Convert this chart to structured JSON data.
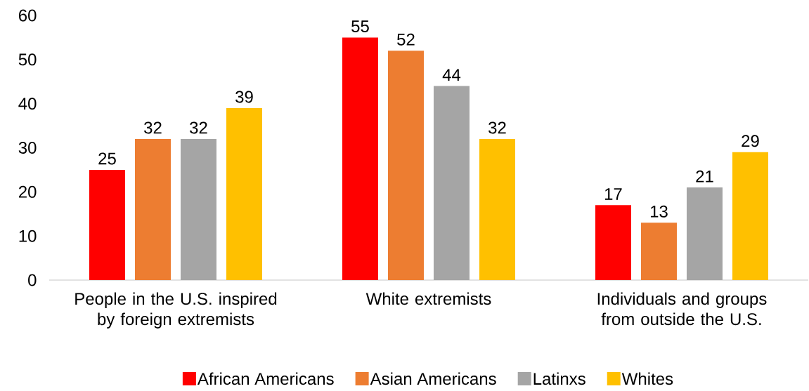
{
  "chart_data": {
    "type": "bar",
    "categories": [
      "People in the U.S. inspired by foreign extremists",
      "White extremists",
      "Individuals and groups from outside the U.S."
    ],
    "series": [
      {
        "name": "African Americans",
        "color": "#ff0000",
        "values": [
          25,
          55,
          17
        ]
      },
      {
        "name": "Asian Americans",
        "color": "#ed7d31",
        "values": [
          32,
          52,
          13
        ]
      },
      {
        "name": "Latinxs",
        "color": "#a5a5a5",
        "values": [
          32,
          44,
          21
        ]
      },
      {
        "name": "Whites",
        "color": "#ffc000",
        "values": [
          39,
          32,
          29
        ]
      }
    ],
    "ylim": [
      0,
      60
    ],
    "yticks": [
      0,
      10,
      20,
      30,
      40,
      50,
      60
    ],
    "data_labels": true,
    "legend": "bottom"
  }
}
